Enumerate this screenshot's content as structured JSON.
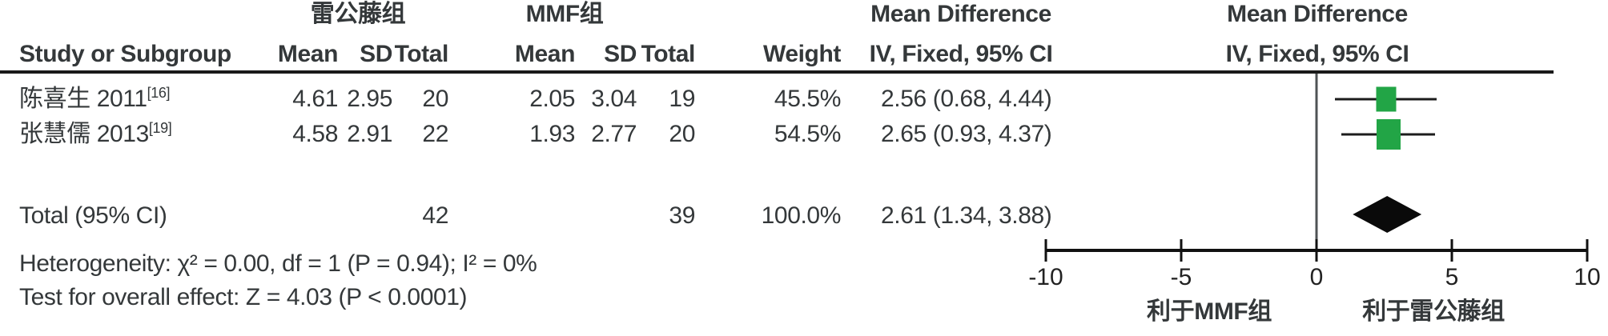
{
  "table": {
    "headers": {
      "study": "Study or Subgroup",
      "group1": "雷公藤组",
      "group2": "MMF组",
      "mean": "Mean",
      "sd": "SD",
      "total": "Total",
      "weight": "Weight",
      "md_line1": "Mean Difference",
      "md_line2": "IV, Fixed, 95% CI"
    },
    "rows": [
      {
        "study": "陈喜生 2011",
        "ref": "[16]",
        "g1_mean": "4.61",
        "g1_sd": "2.95",
        "g1_total": "20",
        "g2_mean": "2.05",
        "g2_sd": "3.04",
        "g2_total": "19",
        "weight": "45.5%",
        "md_ci": "2.56 (0.68, 4.44)"
      },
      {
        "study": "张慧儒 2013",
        "ref": "[19]",
        "g1_mean": "4.58",
        "g1_sd": "2.91",
        "g1_total": "22",
        "g2_mean": "1.93",
        "g2_sd": "2.77",
        "g2_total": "20",
        "weight": "54.5%",
        "md_ci": "2.65 (0.93, 4.37)"
      }
    ],
    "total_row": {
      "label": "Total (95% CI)",
      "g1_total": "42",
      "g2_total": "39",
      "weight": "100.0%",
      "md_ci": "2.61 (1.34, 3.88)"
    },
    "footer": {
      "heterogeneity": "Heterogeneity: χ² = 0.00, df = 1 (P = 0.94); I² = 0%",
      "overall_effect": "Test for overall effect: Z = 4.03 (P < 0.0001)"
    }
  },
  "plot": {
    "header_line1": "Mean Difference",
    "header_line2": "IV, Fixed, 95% CI",
    "favours_left": "利于MMF组",
    "favours_right": "利于雷公藤组",
    "marker_color": "#22a546"
  },
  "chart_data": {
    "type": "forest",
    "effect_measure": "Mean Difference",
    "method": "IV, Fixed, 95% CI",
    "studies": [
      {
        "name": "陈喜生 2011 [16]",
        "exp_mean": 4.61,
        "exp_sd": 2.95,
        "exp_total": 20,
        "ctrl_mean": 2.05,
        "ctrl_sd": 3.04,
        "ctrl_total": 19,
        "weight_pct": 45.5,
        "md": 2.56,
        "ci_low": 0.68,
        "ci_high": 4.44
      },
      {
        "name": "张慧儒 2013 [19]",
        "exp_mean": 4.58,
        "exp_sd": 2.91,
        "exp_total": 22,
        "ctrl_mean": 1.93,
        "ctrl_sd": 2.77,
        "ctrl_total": 20,
        "weight_pct": 54.5,
        "md": 2.65,
        "ci_low": 0.93,
        "ci_high": 4.37
      }
    ],
    "total": {
      "exp_total": 42,
      "ctrl_total": 39,
      "weight_pct": 100.0,
      "md": 2.61,
      "ci_low": 1.34,
      "ci_high": 3.88
    },
    "heterogeneity": {
      "chi2": 0.0,
      "df": 1,
      "p": 0.94,
      "i2_pct": 0
    },
    "overall_effect": {
      "z": 4.03,
      "p": "< 0.0001"
    },
    "axis_range": [
      -10,
      10
    ],
    "ticks": [
      "-10",
      "-5",
      "0",
      "5",
      "10"
    ],
    "favours_left": "利于MMF组",
    "favours_right": "利于雷公藤组",
    "marker_color": "#22a546"
  }
}
